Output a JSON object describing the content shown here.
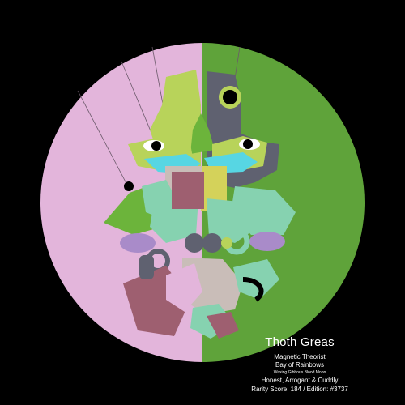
{
  "card": {
    "name": "Thoth Greas",
    "title": "Magnetic Theorist",
    "location": "Bay of Rainbows",
    "moon": "Waxing Gibbous Blood Moon",
    "traits": "Honest, Arrogant & Cuddly",
    "rarity_line": "Rarity Score: 184 / Edition: #3737"
  },
  "palette": {
    "background": "#000000",
    "left_half": "#e3b5db",
    "right_half": "#5fa33a",
    "lime": "#b8d35a",
    "slate": "#5f6170",
    "mint": "#86d2b0",
    "cyan": "#57d6e3",
    "lavender": "#a98bc9",
    "mauve": "#9e5f70",
    "beige": "#c9bdb8",
    "yellow": "#d4d25a",
    "grass": "#6cb43b"
  }
}
